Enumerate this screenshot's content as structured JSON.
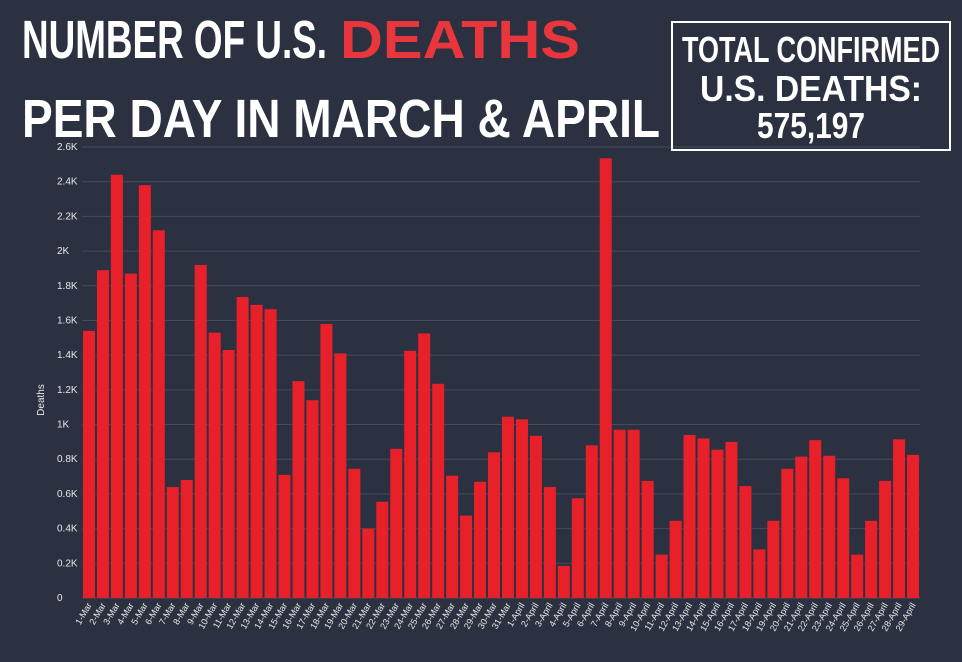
{
  "chart_data": {
    "type": "bar",
    "title": {
      "part1": "NUMBER OF U.S.",
      "highlight": "DEATHS",
      "line2": "PER DAY IN MARCH & APRIL"
    },
    "total_box": {
      "label_lines": [
        "TOTAL CONFIRMED",
        "U.S. DEATHS:"
      ],
      "value": "575,197"
    },
    "y_label": "Deaths",
    "categories": [
      "1-Mar",
      "2-Mar",
      "3-Mar",
      "4-Mar",
      "5-Mar",
      "6-Mar",
      "7-Mar",
      "8-Mar",
      "9-Mar",
      "10-Mar",
      "11-Mar",
      "12-Mar",
      "13-Mar",
      "14-Mar",
      "15-Mar",
      "16-Mar",
      "17-Mar",
      "18-Mar",
      "19-Mar",
      "20-Mar",
      "21-Mar",
      "22-Mar",
      "23-Mar",
      "24-Mar",
      "25-Mar",
      "26-Mar",
      "27-Mar",
      "28-Mar",
      "29-Mar",
      "30-Mar",
      "31-Mar",
      "1-April",
      "2-April",
      "3-April",
      "4-April",
      "5-April",
      "6-April",
      "7-April",
      "8-April",
      "9-April",
      "10-April",
      "11-April",
      "12-April",
      "13-April",
      "14-April",
      "15-April",
      "16-April",
      "17-April",
      "18-April",
      "19-April",
      "20-April",
      "21-April",
      "22-April",
      "23-April",
      "24-April",
      "25-April",
      "26-April",
      "27-April",
      "28-April",
      "29-April"
    ],
    "values": [
      1540,
      1890,
      2440,
      1870,
      2380,
      2120,
      640,
      680,
      1920,
      1530,
      1430,
      1735,
      1690,
      1665,
      710,
      1250,
      1140,
      1580,
      1410,
      745,
      400,
      555,
      860,
      1425,
      1525,
      1235,
      705,
      475,
      670,
      840,
      1045,
      1030,
      935,
      640,
      185,
      575,
      880,
      2535,
      970,
      970,
      675,
      250,
      445,
      940,
      920,
      855,
      900,
      645,
      280,
      445,
      745,
      815,
      910,
      820,
      690,
      250,
      445,
      675,
      915,
      825
    ],
    "color": "#e8202a",
    "ylim": [
      0,
      2600
    ],
    "yticks": [
      0,
      {
        "value": 200,
        "label": "0.2K"
      },
      {
        "value": 400,
        "label": "0.4K"
      },
      {
        "value": 600,
        "label": "0.6K"
      },
      {
        "value": 800,
        "label": "0.8K"
      },
      {
        "value": 1000,
        "label": "1K"
      },
      {
        "value": 1200,
        "label": "1.2K"
      },
      {
        "value": 1400,
        "label": "1.4K"
      },
      {
        "value": 1600,
        "label": "1.6K"
      },
      {
        "value": 1800,
        "label": "1.8K"
      },
      {
        "value": 2000,
        "label": "2K"
      },
      {
        "value": 2200,
        "label": "2.2K"
      },
      {
        "value": 2400,
        "label": "2.4K"
      },
      {
        "value": 2600,
        "label": "2.6K"
      }
    ],
    "grid": true
  }
}
